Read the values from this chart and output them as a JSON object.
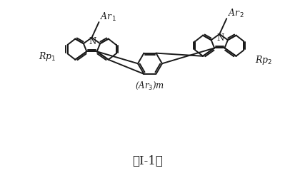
{
  "background_color": "#ffffff",
  "line_color": "#1a1a1a",
  "line_width": 1.4,
  "figure_width": 4.14,
  "figure_height": 2.43,
  "dpi": 100,
  "label_I1": "（I-1）"
}
